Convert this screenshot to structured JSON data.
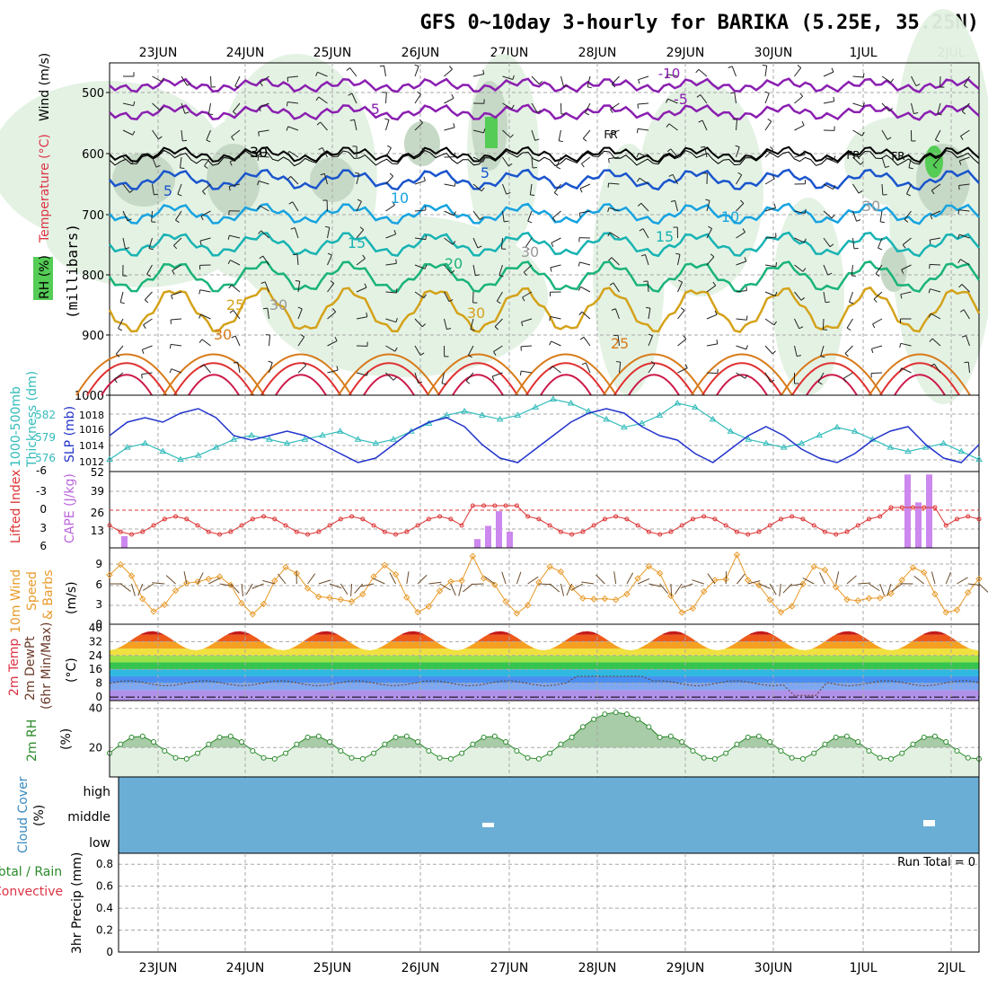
{
  "title": "GFS 0~10day 3-hourly for BARIKA (5.25E, 35.25N)",
  "dates": [
    "23JUN",
    "24JUN",
    "25JUN",
    "26JUN",
    "27JUN",
    "28JUN",
    "29JUN",
    "30JUN",
    "1JUL",
    "2JUL"
  ],
  "colors": {
    "grid": "#a8a8a8",
    "rh_fill": "#e3f1e3",
    "rh_dark": "#c6d9c6",
    "sat_green": "#55cc55",
    "cloud": "#6aaed6",
    "cape": "#cc88ee",
    "lifted": "#dd3333",
    "wind": "#e89a2a",
    "barb": "#6a4a2a",
    "slp": "#2233cc",
    "thick": "#33bbbb"
  },
  "panels": {
    "upper": {
      "label_rh": "RH (%)",
      "label_temp": "Temperature (°C)",
      "label_wind": "Wind (m/s)",
      "label_mb": "(millibars)",
      "y_ticks": [
        "500",
        "600",
        "700",
        "800",
        "900",
        "1000"
      ],
      "isotherm_labels": [
        "-10",
        "-5",
        "-5",
        "5",
        "5",
        "10",
        "10",
        "15",
        "15",
        "20",
        "25",
        "30",
        "30",
        "25",
        "30",
        "30",
        "30",
        "30",
        "FR",
        "FR",
        "FR"
      ]
    },
    "thickness": {
      "label": "1000-500mb Thickness (dm)",
      "label_slp": "SLP (mb)",
      "left_ticks": [
        "582",
        "579",
        "576"
      ],
      "right_ticks": [
        "1018",
        "1016",
        "1014",
        "1012"
      ]
    },
    "cape": {
      "label_lifted": "Lifted Index",
      "label_cape": "CAPE (J/kg)",
      "left_ticks": [
        "-6",
        "-3",
        "0",
        "3",
        "6"
      ],
      "right_ticks": [
        "52",
        "39",
        "26",
        "13"
      ]
    },
    "wind10m": {
      "label1": "10m Wind",
      "label2": "Speed",
      "label3": "& Barbs",
      "unit": "(m/s)",
      "ticks": [
        "9",
        "6",
        "3",
        "0"
      ]
    },
    "temp2m": {
      "label1": "2m Temp",
      "label2": "2m DewPt",
      "label3": "(6hr Min/Max)",
      "unit": "(°C)",
      "ticks": [
        "40",
        "32",
        "24",
        "16",
        "8",
        "0"
      ]
    },
    "rh2m": {
      "label": "2m RH",
      "unit": "(%)",
      "ticks": [
        "40",
        "20"
      ]
    },
    "cloud": {
      "label": "Cloud Cover",
      "unit": "(%)",
      "levels": [
        "high",
        "middle",
        "low"
      ]
    },
    "precip": {
      "label1": "Total / Rain",
      "label2": "Convective",
      "unit": "3hr Precip (mm)",
      "ticks": [
        "0.8",
        "0.6",
        "0.4",
        "0.2",
        "0"
      ],
      "run_total": "Run Total = 0"
    }
  },
  "chart_data": [
    {
      "type": "line",
      "title": "1000-500mb Thickness (dm)",
      "series": [
        {
          "name": "Thickness",
          "values": [
            576,
            577.5,
            578,
            577,
            576,
            576.5,
            577.5,
            578.5,
            579,
            578.5,
            578,
            578.5,
            579,
            579.5,
            578.5,
            578,
            578.5,
            579.5,
            580.5,
            581.5,
            582,
            581.5,
            581,
            581.5,
            582.5,
            583.5,
            583,
            582,
            581,
            580,
            580.5,
            581.5,
            583,
            582.5,
            581,
            579.5,
            578.5,
            578,
            577.5,
            578,
            579,
            580,
            579.5,
            578.5,
            577.5,
            577,
            577.5,
            578,
            577,
            576
          ]
        },
        {
          "name": "SLP",
          "values": [
            1015,
            1016.5,
            1017,
            1016.5,
            1017.5,
            1018,
            1017,
            1015,
            1014.5,
            1015,
            1015.5,
            1015,
            1014,
            1013,
            1012,
            1012.5,
            1014,
            1015.5,
            1016.5,
            1017,
            1016,
            1014,
            1012.5,
            1012,
            1013.5,
            1015,
            1016.5,
            1017.5,
            1018,
            1017.5,
            1016,
            1015,
            1014.5,
            1013,
            1012,
            1013.5,
            1015,
            1016,
            1015,
            1013.5,
            1012.5,
            1012,
            1013,
            1014.5,
            1015.5,
            1016,
            1014,
            1012.5,
            1012,
            1014
          ]
        }
      ]
    },
    {
      "type": "bar",
      "title": "CAPE (J/kg)",
      "categories": [
        "22JUN-18",
        "26JUN-15",
        "26JUN-18",
        "26JUN-21",
        "27JUN-00",
        "1JUL-12",
        "1JUL-15",
        "1JUL-18"
      ],
      "values": [
        8,
        6,
        15,
        25,
        11,
        50,
        31,
        50
      ]
    },
    {
      "type": "line",
      "title": "10m Wind Speed (m/s)",
      "x": [
        "23JUN",
        "24JUN",
        "25JUN",
        "26JUN",
        "27JUN",
        "28JUN",
        "29JUN",
        "30JUN",
        "1JUL",
        "2JUL"
      ],
      "values": [
        5,
        3,
        7,
        5,
        5,
        10,
        4,
        3,
        9,
        4
      ]
    },
    {
      "type": "area",
      "title": "2m Temp (°C)",
      "x": [
        "23JUN",
        "24JUN",
        "25JUN",
        "26JUN",
        "27JUN",
        "28JUN",
        "29JUN",
        "30JUN",
        "1JUL",
        "2JUL"
      ],
      "values_max": [
        36,
        37,
        37,
        38,
        39,
        38,
        37,
        37,
        37,
        37
      ],
      "values_min": [
        27,
        27,
        27,
        28,
        28,
        28,
        28,
        28,
        28,
        28
      ]
    },
    {
      "type": "area",
      "title": "2m RH (%)",
      "x": [
        "23JUN",
        "24JUN",
        "25JUN",
        "26JUN",
        "27JUN",
        "28JUN",
        "29JUN",
        "30JUN",
        "1JUL",
        "2JUL"
      ],
      "values": [
        28,
        26,
        22,
        19,
        22,
        40,
        32,
        34,
        30,
        30
      ]
    },
    {
      "type": "bar",
      "title": "3hr Precip (mm)",
      "categories": [
        "Run Total"
      ],
      "values": [
        0
      ],
      "ylim": [
        0,
        0.9
      ]
    }
  ]
}
